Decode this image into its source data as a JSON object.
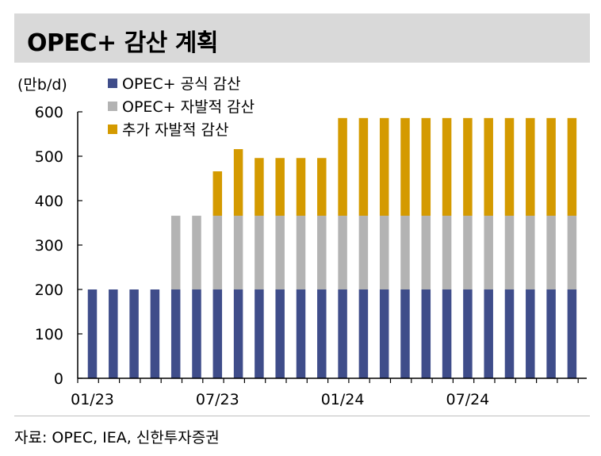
{
  "title": "OPEC+ 감산 계획",
  "unit": "(만b/d)",
  "source": "자료: OPEC, IEA, 신한투자증권",
  "colors": {
    "official": "#3f4d8a",
    "voluntary": "#b3b3b3",
    "additional": "#d49a00"
  },
  "chart_data": {
    "type": "bar",
    "stacked": true,
    "ylim": [
      0,
      600
    ],
    "yticks": [
      0,
      100,
      200,
      300,
      400,
      500,
      600
    ],
    "xtick_labels": [
      "01/23",
      "07/23",
      "01/24",
      "07/24"
    ],
    "xtick_positions": [
      0,
      6,
      12,
      18
    ],
    "categories": [
      "01/23",
      "02/23",
      "03/23",
      "04/23",
      "05/23",
      "06/23",
      "07/23",
      "08/23",
      "09/23",
      "10/23",
      "11/23",
      "12/23",
      "01/24",
      "02/24",
      "03/24",
      "04/24",
      "05/24",
      "06/24",
      "07/24",
      "08/24",
      "09/24",
      "10/24",
      "11/24",
      "12/24"
    ],
    "series": [
      {
        "name": "OPEC+ 공식 감산",
        "color_key": "official",
        "values": [
          200,
          200,
          200,
          200,
          200,
          200,
          200,
          200,
          200,
          200,
          200,
          200,
          200,
          200,
          200,
          200,
          200,
          200,
          200,
          200,
          200,
          200,
          200,
          200
        ]
      },
      {
        "name": "OPEC+ 자발적 감산",
        "color_key": "voluntary",
        "values": [
          0,
          0,
          0,
          0,
          166,
          166,
          166,
          166,
          166,
          166,
          166,
          166,
          166,
          166,
          166,
          166,
          166,
          166,
          166,
          166,
          166,
          166,
          166,
          166
        ]
      },
      {
        "name": "추가 자발적 감산",
        "color_key": "additional",
        "values": [
          0,
          0,
          0,
          0,
          0,
          0,
          100,
          150,
          130,
          130,
          130,
          130,
          220,
          220,
          220,
          220,
          220,
          220,
          220,
          220,
          220,
          220,
          220,
          220
        ]
      }
    ],
    "grid": false,
    "legend_position": "top-left"
  }
}
